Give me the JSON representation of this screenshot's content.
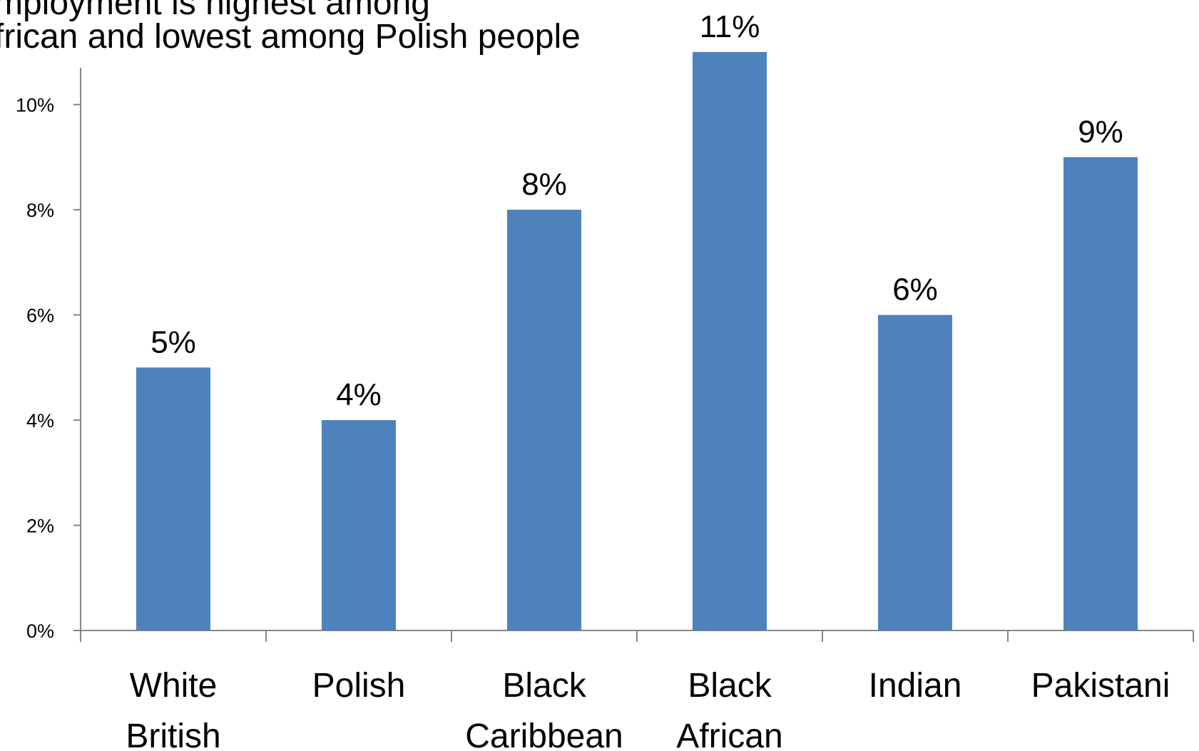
{
  "chart_data": {
    "type": "bar",
    "title_lines": [
      "mployment is highest among",
      "frican and lowest among Polish people"
    ],
    "categories": [
      [
        "White",
        "British"
      ],
      [
        "Polish"
      ],
      [
        "Black",
        "Caribbean"
      ],
      [
        "Black",
        "African"
      ],
      [
        "Indian"
      ],
      [
        "Pakistani"
      ]
    ],
    "values": [
      5,
      4,
      8,
      11,
      6,
      9
    ],
    "data_labels": [
      "5%",
      "4%",
      "8%",
      "11%",
      "6%",
      "9%"
    ],
    "yticks": [
      "0%",
      "2%",
      "4%",
      "6%",
      "8%",
      "10%"
    ],
    "ylim": [
      0,
      10.7
    ],
    "bar_color": "#4F81BD",
    "axis_color": "#868686",
    "grid": false,
    "legend": "none",
    "xlabel": "",
    "ylabel": ""
  }
}
